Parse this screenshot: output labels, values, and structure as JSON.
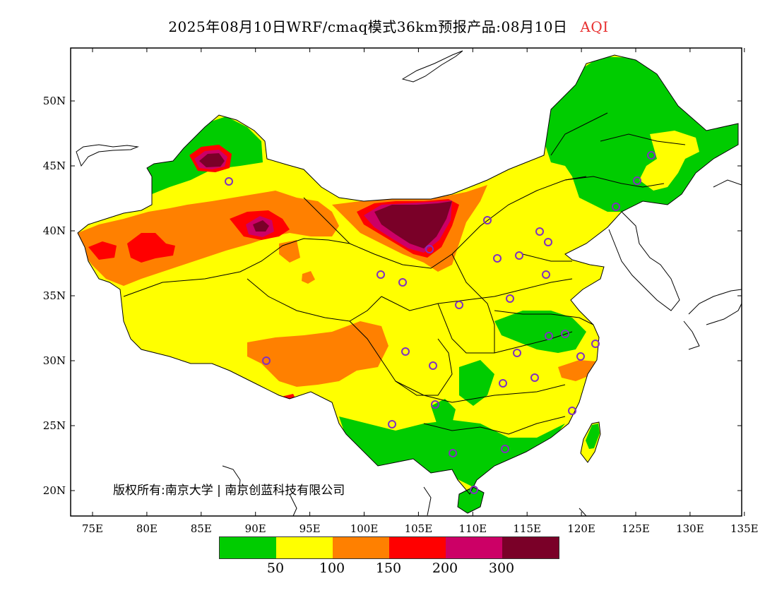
{
  "header": {
    "title": "2025年08月10日WRF/cmaq模式36km预报产品:08月10日",
    "variable": "AQI",
    "variable_color": "#e83030"
  },
  "axes": {
    "lat_labels": [
      "50N",
      "45N",
      "40N",
      "35N",
      "30N",
      "25N",
      "20N"
    ],
    "lon_labels": [
      "75E",
      "80E",
      "85E",
      "90E",
      "95E",
      "100E",
      "105E",
      "110E",
      "115E",
      "120E",
      "125E",
      "130E",
      "135E"
    ]
  },
  "copyright": "版权所有:南京大学 | 南京创蓝科技有限公司",
  "legend": {
    "colors": [
      "#00cc00",
      "#ffff00",
      "#ff8000",
      "#ff0000",
      "#cc0066",
      "#7a0028"
    ],
    "labels": [
      "50",
      "100",
      "150",
      "200",
      "300"
    ]
  },
  "colors": {
    "good": "#00cc00",
    "moderate": "#ffff00",
    "sensitive": "#ff8000",
    "unhealthy": "#ff0000",
    "very_unhealthy": "#cc0066",
    "hazardous": "#7a0028",
    "station_marker": "#8030c0"
  }
}
